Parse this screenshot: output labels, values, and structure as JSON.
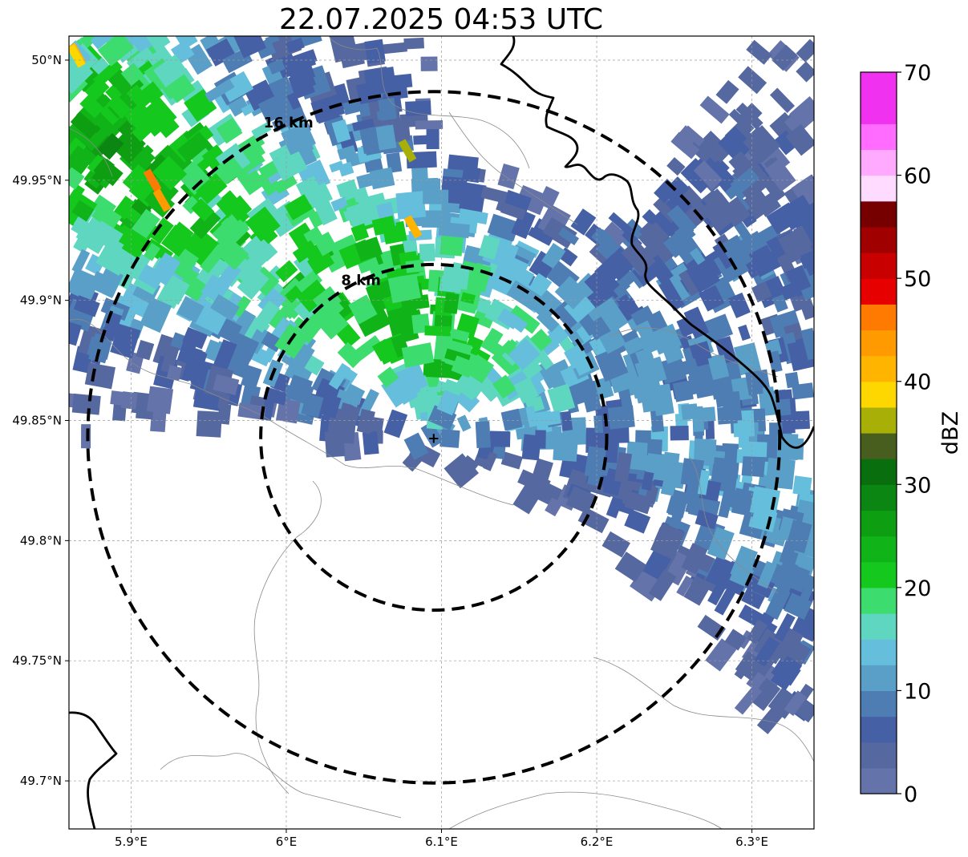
{
  "title": "22.07.2025 04:53 UTC",
  "map": {
    "lon_range": [
      5.86,
      6.34
    ],
    "lat_range": [
      49.68,
      50.01
    ],
    "lon_ticks": [
      {
        "v": 5.9,
        "label": "5.9°E"
      },
      {
        "v": 6.0,
        "label": "6°E"
      },
      {
        "v": 6.1,
        "label": "6.1°E"
      },
      {
        "v": 6.2,
        "label": "6.2°E"
      },
      {
        "v": 6.3,
        "label": "6.3°E"
      }
    ],
    "lat_ticks": [
      {
        "v": 50.0,
        "label": "50°N"
      },
      {
        "v": 49.95,
        "label": "49.95°N"
      },
      {
        "v": 49.9,
        "label": "49.9°N"
      },
      {
        "v": 49.85,
        "label": "49.85°N"
      },
      {
        "v": 49.8,
        "label": "49.8°N"
      },
      {
        "v": 49.75,
        "label": "49.75°N"
      },
      {
        "v": 49.7,
        "label": "49.7°N"
      }
    ],
    "grid": true,
    "radar_site": {
      "lon": 6.095,
      "lat": 49.843
    },
    "range_rings": [
      {
        "radius_km": 8,
        "label": "8 km"
      },
      {
        "radius_km": 16,
        "label": "16 km"
      }
    ]
  },
  "colorbar": {
    "label": "dBZ",
    "min": 0,
    "max": 70,
    "step": 2.5,
    "tick_labels": [
      "0",
      "10",
      "20",
      "30",
      "40",
      "50",
      "60",
      "70"
    ],
    "colors": [
      "#6474aa",
      "#55689f",
      "#4660a5",
      "#4e7db4",
      "#5a9fc8",
      "#64bedc",
      "#5fd6c0",
      "#3cdc6e",
      "#14c81e",
      "#10b418",
      "#0e9e12",
      "#0c8612",
      "#096e0e",
      "#485e1e",
      "#a8b008",
      "#ffd700",
      "#ffb500",
      "#ff9a00",
      "#ff7a00",
      "#e60000",
      "#c80000",
      "#a00000",
      "#760000",
      "#ffdcff",
      "#ffaaff",
      "#ff6cff",
      "#f032f0"
    ]
  }
}
